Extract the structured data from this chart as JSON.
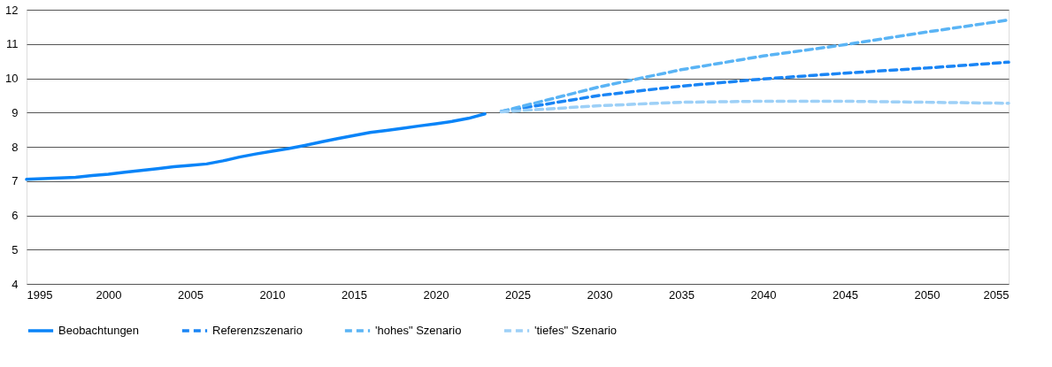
{
  "chart_data": {
    "type": "line",
    "xlim": [
      1995,
      2055
    ],
    "xticks": [
      1995,
      2000,
      2005,
      2010,
      2015,
      2020,
      2025,
      2030,
      2035,
      2040,
      2045,
      2050,
      2055
    ],
    "ylim": [
      4,
      12
    ],
    "yticks": [
      4,
      5,
      6,
      7,
      8,
      9,
      10,
      11,
      12
    ],
    "grid": "y",
    "legend": "bottom",
    "marker": "none",
    "series": [
      {
        "name": "Beobachtungen",
        "color": "#0a84f8",
        "line_style": "solid",
        "x": [
          1995,
          1996,
          1997,
          1998,
          1999,
          2000,
          2001,
          2002,
          2003,
          2004,
          2005,
          2006,
          2007,
          2008,
          2009,
          2010,
          2011,
          2012,
          2013,
          2014,
          2015,
          2016,
          2017,
          2018,
          2019,
          2020,
          2021,
          2022,
          2023
        ],
        "values": [
          7.05,
          7.07,
          7.09,
          7.11,
          7.16,
          7.2,
          7.26,
          7.31,
          7.36,
          7.42,
          7.46,
          7.5,
          7.59,
          7.7,
          7.79,
          7.87,
          7.95,
          8.04,
          8.14,
          8.24,
          8.33,
          8.42,
          8.48,
          8.54,
          8.61,
          8.67,
          8.74,
          8.83,
          8.96
        ]
      },
      {
        "name": "Referenzszenario",
        "color": "#1a85f5",
        "line_style": "dashed",
        "x": [
          2024,
          2030,
          2035,
          2040,
          2045,
          2050,
          2055
        ],
        "values": [
          9.03,
          9.5,
          9.77,
          9.98,
          10.15,
          10.3,
          10.47
        ]
      },
      {
        "name": "'hohes\" Szenario",
        "color": "#5ab4f5",
        "line_style": "dashed",
        "x": [
          2024,
          2030,
          2035,
          2040,
          2045,
          2050,
          2055
        ],
        "values": [
          9.03,
          9.75,
          10.25,
          10.65,
          10.98,
          11.35,
          11.7
        ]
      },
      {
        "name": "'tiefes\" Szenario",
        "color": "#9dd0f7",
        "line_style": "dashed",
        "x": [
          2024,
          2030,
          2035,
          2040,
          2045,
          2050,
          2055
        ],
        "values": [
          9.02,
          9.2,
          9.3,
          9.33,
          9.33,
          9.3,
          9.27
        ]
      }
    ]
  }
}
